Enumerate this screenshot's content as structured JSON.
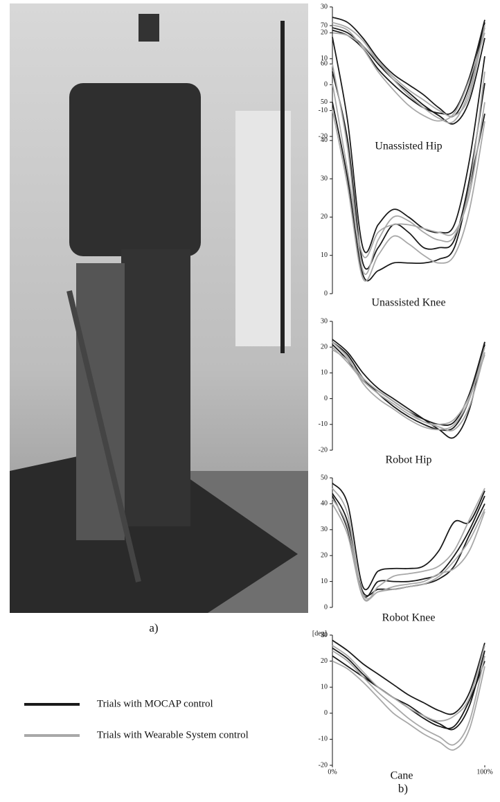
{
  "panel_labels": [
    "a)",
    "b)"
  ],
  "legend": [
    {
      "label": "Trials with MOCAP control",
      "color": "#1a1a1a"
    },
    {
      "label": "Trials with Wearable System control",
      "color": "#a8a8a8"
    }
  ],
  "chart_data": [
    {
      "type": "line",
      "title": "Unassisted Hip",
      "x": [
        0,
        10,
        20,
        30,
        40,
        50,
        60,
        70,
        80,
        90,
        100
      ],
      "xlim": [
        0,
        100
      ],
      "ylim": [
        -20,
        30
      ],
      "yticks": [
        -20,
        -10,
        0,
        10,
        20,
        30
      ],
      "series": [
        {
          "color": "#1a1a1a",
          "values": [
            26,
            24,
            18,
            10,
            4,
            0,
            -4,
            -9,
            -12,
            0,
            24
          ]
        },
        {
          "color": "#1a1a1a",
          "values": [
            22,
            20,
            15,
            8,
            2,
            -3,
            -8,
            -12,
            -15,
            -6,
            18
          ]
        },
        {
          "color": "#1a1a1a",
          "values": [
            21,
            19,
            14,
            6,
            0,
            -5,
            -9,
            -11,
            -10,
            3,
            25
          ]
        },
        {
          "color": "#a8a8a8",
          "values": [
            24,
            22,
            17,
            9,
            2,
            -4,
            -9,
            -13,
            -14,
            -2,
            22
          ]
        },
        {
          "color": "#a8a8a8",
          "values": [
            23,
            21,
            14,
            5,
            -2,
            -8,
            -12,
            -14,
            -11,
            2,
            20
          ]
        },
        {
          "color": "#a8a8a8",
          "values": [
            20,
            19,
            15,
            9,
            3,
            -2,
            -6,
            -10,
            -12,
            -4,
            23
          ]
        }
      ]
    },
    {
      "type": "line",
      "title": "Unassisted Knee",
      "x": [
        0,
        10,
        20,
        30,
        40,
        50,
        60,
        70,
        80,
        90,
        100
      ],
      "xlim": [
        0,
        100
      ],
      "ylim": [
        0,
        70
      ],
      "yticks": [
        0,
        10,
        20,
        30,
        40,
        50,
        60,
        70
      ],
      "series": [
        {
          "color": "#1a1a1a",
          "values": [
            67,
            45,
            12,
            18,
            22,
            20,
            17,
            16,
            18,
            35,
            62
          ]
        },
        {
          "color": "#1a1a1a",
          "values": [
            58,
            40,
            8,
            12,
            18,
            16,
            12,
            12,
            14,
            30,
            55
          ]
        },
        {
          "color": "#1a1a1a",
          "values": [
            50,
            30,
            5,
            6,
            8,
            8,
            8,
            9,
            12,
            28,
            47
          ]
        },
        {
          "color": "#a8a8a8",
          "values": [
            60,
            38,
            6,
            14,
            20,
            19,
            16,
            14,
            15,
            28,
            58
          ]
        },
        {
          "color": "#a8a8a8",
          "values": [
            48,
            28,
            4,
            10,
            15,
            13,
            10,
            8,
            10,
            22,
            45
          ]
        },
        {
          "color": "#a8a8a8",
          "values": [
            55,
            32,
            10,
            16,
            18,
            18,
            17,
            16,
            16,
            26,
            50
          ]
        }
      ]
    },
    {
      "type": "line",
      "title": "Robot Hip",
      "x": [
        0,
        10,
        20,
        30,
        40,
        50,
        60,
        70,
        80,
        90,
        100
      ],
      "xlim": [
        0,
        100
      ],
      "ylim": [
        -20,
        30
      ],
      "yticks": [
        -20,
        -10,
        0,
        10,
        20,
        30
      ],
      "series": [
        {
          "color": "#1a1a1a",
          "values": [
            23,
            18,
            10,
            4,
            0,
            -4,
            -8,
            -12,
            -15,
            -4,
            22
          ]
        },
        {
          "color": "#1a1a1a",
          "values": [
            22,
            17,
            8,
            2,
            -3,
            -7,
            -10,
            -12,
            -11,
            0,
            21
          ]
        },
        {
          "color": "#1a1a1a",
          "values": [
            21,
            15,
            7,
            3,
            -1,
            -5,
            -8,
            -10,
            -9,
            2,
            22
          ]
        },
        {
          "color": "#a8a8a8",
          "values": [
            22,
            16,
            6,
            0,
            -4,
            -8,
            -11,
            -12,
            -10,
            0,
            20
          ]
        },
        {
          "color": "#a8a8a8",
          "values": [
            20,
            14,
            7,
            2,
            -2,
            -6,
            -9,
            -11,
            -12,
            -3,
            18
          ]
        },
        {
          "color": "#a8a8a8",
          "values": [
            19,
            15,
            8,
            3,
            -1,
            -5,
            -9,
            -10,
            -8,
            1,
            17
          ]
        }
      ]
    },
    {
      "type": "line",
      "title": "Robot Knee",
      "x": [
        0,
        10,
        20,
        30,
        40,
        50,
        60,
        70,
        80,
        90,
        100
      ],
      "xlim": [
        0,
        100
      ],
      "ylim": [
        0,
        50
      ],
      "yticks": [
        0,
        10,
        20,
        30,
        40,
        50
      ],
      "series": [
        {
          "color": "#1a1a1a",
          "values": [
            48,
            40,
            8,
            14,
            15,
            15,
            16,
            22,
            33,
            33,
            45
          ]
        },
        {
          "color": "#1a1a1a",
          "values": [
            44,
            33,
            5,
            10,
            10,
            10,
            11,
            13,
            20,
            30,
            43
          ]
        },
        {
          "color": "#1a1a1a",
          "values": [
            43,
            30,
            6,
            7,
            7,
            8,
            9,
            11,
            16,
            28,
            40
          ]
        },
        {
          "color": "#a8a8a8",
          "values": [
            46,
            36,
            4,
            8,
            12,
            13,
            14,
            16,
            22,
            34,
            46
          ]
        },
        {
          "color": "#a8a8a8",
          "values": [
            40,
            28,
            4,
            6,
            7,
            8,
            9,
            12,
            18,
            26,
            38
          ]
        },
        {
          "color": "#a8a8a8",
          "values": [
            42,
            31,
            5,
            6,
            8,
            9,
            10,
            13,
            15,
            22,
            37
          ]
        }
      ]
    },
    {
      "type": "line",
      "title": "Cane",
      "y_label": "[deg]",
      "x": [
        0,
        10,
        20,
        30,
        40,
        50,
        60,
        70,
        80,
        90,
        100
      ],
      "xlim": [
        0,
        100
      ],
      "ylim": [
        -20,
        30
      ],
      "yticks": [
        -20,
        -10,
        0,
        10,
        20,
        30
      ],
      "xticks": [
        {
          "value": 0,
          "label": "0%"
        },
        {
          "value": 100,
          "label": "100%"
        }
      ],
      "series": [
        {
          "color": "#1a1a1a",
          "values": [
            28,
            24,
            19,
            15,
            11,
            7,
            4,
            1,
            0,
            8,
            27
          ]
        },
        {
          "color": "#1a1a1a",
          "values": [
            25,
            21,
            15,
            10,
            6,
            3,
            -1,
            -4,
            -6,
            3,
            24
          ]
        },
        {
          "color": "#1a1a1a",
          "values": [
            22,
            18,
            14,
            10,
            6,
            2,
            -2,
            -5,
            -5,
            5,
            20
          ]
        },
        {
          "color": "#a8a8a8",
          "values": [
            24,
            20,
            14,
            8,
            3,
            -2,
            -6,
            -9,
            -12,
            -3,
            22
          ]
        },
        {
          "color": "#a8a8a8",
          "values": [
            20,
            17,
            12,
            6,
            0,
            -4,
            -8,
            -11,
            -14,
            -6,
            18
          ]
        },
        {
          "color": "#a8a8a8",
          "values": [
            26,
            22,
            16,
            10,
            6,
            2,
            -1,
            -3,
            -1,
            6,
            26
          ]
        }
      ]
    }
  ]
}
